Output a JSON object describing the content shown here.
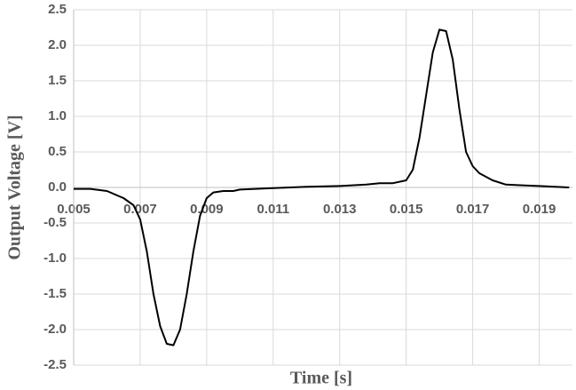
{
  "chart_data": {
    "type": "line",
    "x_label": "Time [s]",
    "y_label": "Output Voltage [V]",
    "xlim": [
      0.005,
      0.02
    ],
    "ylim": [
      -2.5,
      2.5
    ],
    "xticks": [
      0.005,
      0.007,
      0.009,
      0.011,
      0.013,
      0.015,
      0.017,
      0.019
    ],
    "yticks": [
      -2.5,
      {
        "value": -2,
        "label": "-2.0"
      },
      -1.5,
      {
        "value": -1,
        "label": "-1.0"
      },
      -0.5,
      {
        "value": 0,
        "label": "0.0"
      },
      0.5,
      {
        "value": 1,
        "label": "1.0"
      },
      1.5,
      {
        "value": 2,
        "label": "2.0"
      },
      2.5
    ],
    "grid": true,
    "series": [
      {
        "color": "#000000",
        "x": [
          0.005,
          0.0055,
          0.006,
          0.0065,
          0.0068,
          0.007,
          0.0072,
          0.0074,
          0.0076,
          0.0078,
          0.008,
          0.0082,
          0.0084,
          0.0086,
          0.0088,
          0.009,
          0.0092,
          0.0095,
          0.0098,
          0.01,
          0.011,
          0.012,
          0.013,
          0.0138,
          0.0142,
          0.0146,
          0.015,
          0.0152,
          0.0154,
          0.0156,
          0.0158,
          0.016,
          0.0162,
          0.0164,
          0.0166,
          0.0168,
          0.017,
          0.0172,
          0.0176,
          0.018,
          0.0185,
          0.019,
          0.0199
        ],
        "values": [
          -0.02,
          -0.02,
          -0.05,
          -0.15,
          -0.25,
          -0.45,
          -0.9,
          -1.5,
          -1.95,
          -2.2,
          -2.22,
          -2.0,
          -1.5,
          -0.9,
          -0.4,
          -0.15,
          -0.07,
          -0.05,
          -0.05,
          -0.03,
          -0.01,
          0.01,
          0.02,
          0.04,
          0.06,
          0.06,
          0.1,
          0.25,
          0.7,
          1.3,
          1.9,
          2.22,
          2.2,
          1.8,
          1.1,
          0.5,
          0.3,
          0.2,
          0.1,
          0.04,
          0.03,
          0.02,
          0.0
        ]
      }
    ]
  }
}
